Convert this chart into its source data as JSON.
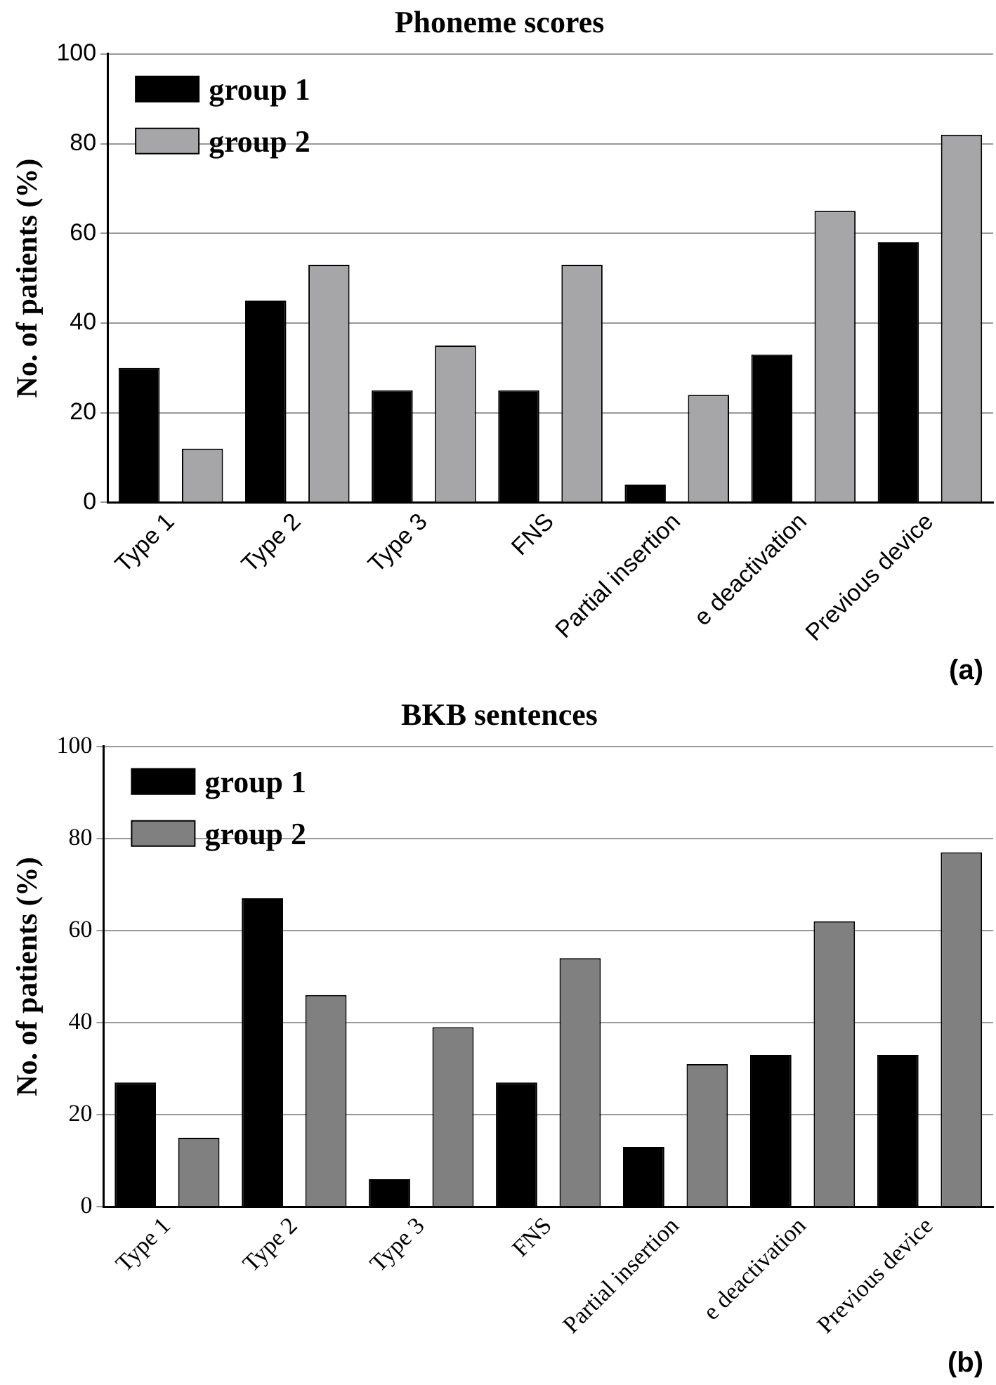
{
  "chart_data": [
    {
      "type": "bar",
      "title": "Phoneme scores",
      "ylabel": "No. of patients (%)",
      "categories": [
        "Type 1",
        "Type 2",
        "Type 3",
        "FNS",
        "Partial insertion",
        "e deactivation",
        "Previous device"
      ],
      "series": [
        {
          "name": "group 1",
          "color": "#000000",
          "values": [
            30,
            45,
            25,
            25,
            4,
            33,
            58
          ]
        },
        {
          "name": "group 2",
          "color": "#a6a6a8",
          "values": [
            12,
            53,
            35,
            53,
            24,
            65,
            82
          ]
        }
      ],
      "ylim": [
        0,
        100
      ],
      "yticks": [
        0,
        20,
        40,
        60,
        80,
        100
      ],
      "grid": "y",
      "legend": "top left",
      "annotations": [
        "(a)"
      ]
    },
    {
      "type": "bar",
      "title": "BKB sentences",
      "ylabel": "No. of patients (%)",
      "categories": [
        "Type 1",
        "Type 2",
        "Type 3",
        "FNS",
        "Partial insertion",
        "e deactivation",
        "Previous device"
      ],
      "series": [
        {
          "name": "group 1",
          "color": "#000000",
          "values": [
            27,
            67,
            6,
            27,
            13,
            33,
            33
          ]
        },
        {
          "name": "group 2",
          "color": "#808080",
          "values": [
            15,
            46,
            39,
            54,
            31,
            62,
            77
          ]
        }
      ],
      "ylim": [
        0,
        100
      ],
      "yticks": [
        0,
        20,
        40,
        60,
        80,
        100
      ],
      "grid": "y",
      "legend": "top left",
      "annotations": [
        "(b)"
      ]
    }
  ]
}
